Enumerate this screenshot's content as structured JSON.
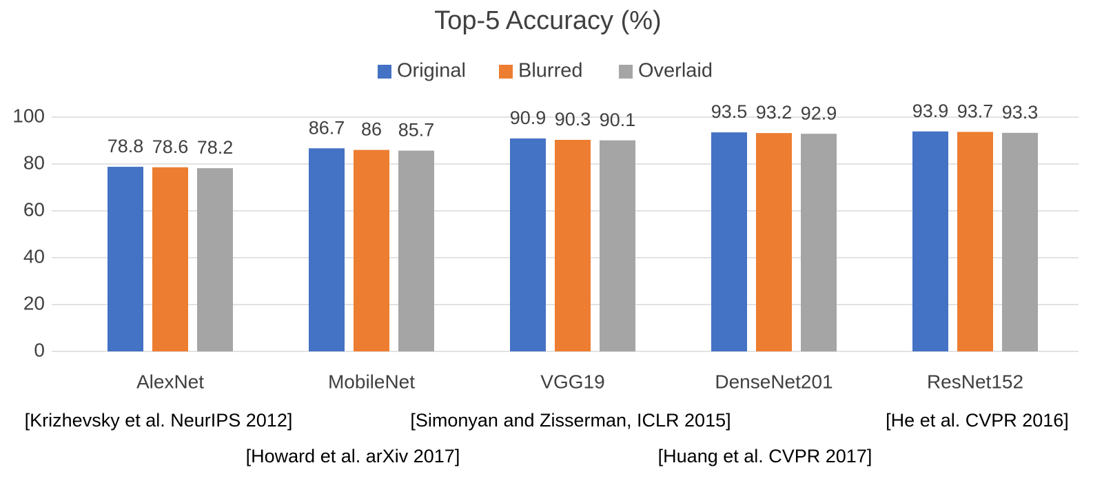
{
  "chart_data": {
    "type": "bar",
    "title": "Top-5 Accuracy (%)",
    "categories": [
      "AlexNet",
      "MobileNet",
      "VGG19",
      "DenseNet201",
      "ResNet152"
    ],
    "series": [
      {
        "name": "Original",
        "color": "#4472c4",
        "values": [
          78.8,
          86.7,
          90.9,
          93.5,
          93.9
        ]
      },
      {
        "name": "Blurred",
        "color": "#ed7d31",
        "values": [
          78.6,
          86,
          90.3,
          93.2,
          93.7
        ]
      },
      {
        "name": "Overlaid",
        "color": "#a5a5a5",
        "values": [
          78.2,
          85.7,
          90.1,
          92.9,
          93.3
        ]
      }
    ],
    "ylim": [
      0,
      100
    ],
    "yticks": [
      0,
      20,
      40,
      60,
      80,
      100
    ],
    "grid": true,
    "legend": "top",
    "annotations": [
      "[Krizhevsky et al. NeurIPS 2012]",
      "[Howard et al. arXiv 2017]",
      "[Simonyan and Zisserman, ICLR 2015]",
      "[Huang et al. CVPR 2017]",
      "[He et al. CVPR 2016]"
    ]
  }
}
